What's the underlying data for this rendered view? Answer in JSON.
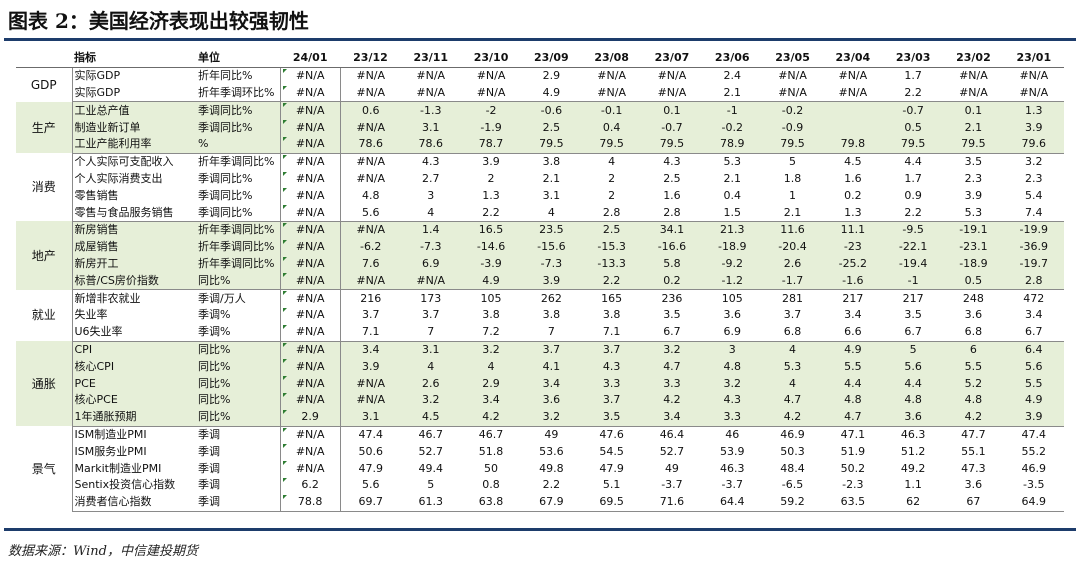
{
  "title": "图表 2：美国经济表现出较强韧性",
  "source": "数据来源：Wind，中信建投期货",
  "table": {
    "headers": [
      "指标",
      "单位",
      "24/01",
      "23/12",
      "23/11",
      "23/10",
      "23/09",
      "23/08",
      "23/07",
      "23/06",
      "23/05",
      "23/04",
      "23/03",
      "23/02",
      "23/01"
    ],
    "groups": [
      {
        "category": "GDP",
        "rows": [
          {
            "name": "实际GDP",
            "unit": "折年同比%",
            "values": [
              "#N/A",
              "#N/A",
              "#N/A",
              "#N/A",
              "2.9",
              "#N/A",
              "#N/A",
              "2.4",
              "#N/A",
              "#N/A",
              "1.7",
              "#N/A",
              "#N/A"
            ]
          },
          {
            "name": "实际GDP",
            "unit": "折年季调环比%",
            "values": [
              "#N/A",
              "#N/A",
              "#N/A",
              "#N/A",
              "4.9",
              "#N/A",
              "#N/A",
              "2.1",
              "#N/A",
              "#N/A",
              "2.2",
              "#N/A",
              "#N/A"
            ]
          }
        ]
      },
      {
        "category": "生产",
        "rows": [
          {
            "name": "工业总产值",
            "unit": "季调同比%",
            "values": [
              "#N/A",
              "0.6",
              "-1.3",
              "-2",
              "-0.6",
              "-0.1",
              "0.1",
              "-1",
              "-0.2",
              "",
              "-0.7",
              "0.1",
              "1.3"
            ]
          },
          {
            "name": "制造业新订单",
            "unit": "季调同比%",
            "values": [
              "#N/A",
              "#N/A",
              "3.1",
              "-1.9",
              "2.5",
              "0.4",
              "-0.7",
              "-0.2",
              "-0.9",
              "",
              "0.5",
              "2.1",
              "3.9"
            ]
          },
          {
            "name": "工业产能利用率",
            "unit": "%",
            "values": [
              "#N/A",
              "78.6",
              "78.6",
              "78.7",
              "79.5",
              "79.5",
              "79.5",
              "78.9",
              "79.5",
              "79.8",
              "79.5",
              "79.5",
              "79.6"
            ]
          }
        ]
      },
      {
        "category": "消费",
        "rows": [
          {
            "name": "个人实际可支配收入",
            "unit": "折年季调同比%",
            "values": [
              "#N/A",
              "#N/A",
              "4.3",
              "3.9",
              "3.8",
              "4",
              "4.3",
              "5.3",
              "5",
              "4.5",
              "4.4",
              "3.5",
              "3.2"
            ]
          },
          {
            "name": "个人实际消费支出",
            "unit": "季调同比%",
            "values": [
              "#N/A",
              "#N/A",
              "2.7",
              "2",
              "2.1",
              "2",
              "2.5",
              "2.1",
              "1.8",
              "1.6",
              "1.7",
              "2.3",
              "2.3"
            ]
          },
          {
            "name": "零售销售",
            "unit": "季调同比%",
            "values": [
              "#N/A",
              "4.8",
              "3",
              "1.3",
              "3.1",
              "2",
              "1.6",
              "0.4",
              "1",
              "0.2",
              "0.9",
              "3.9",
              "5.4"
            ]
          },
          {
            "name": "零售与食品服务销售",
            "unit": "季调同比%",
            "values": [
              "#N/A",
              "5.6",
              "4",
              "2.2",
              "4",
              "2.8",
              "2.8",
              "1.5",
              "2.1",
              "1.3",
              "2.2",
              "5.3",
              "7.4"
            ]
          }
        ]
      },
      {
        "category": "地产",
        "rows": [
          {
            "name": "新房销售",
            "unit": "折年季调同比%",
            "values": [
              "#N/A",
              "#N/A",
              "1.4",
              "16.5",
              "23.5",
              "2.5",
              "34.1",
              "21.3",
              "11.6",
              "11.1",
              "-9.5",
              "-19.1",
              "-19.9"
            ]
          },
          {
            "name": "成屋销售",
            "unit": "折年季调同比%",
            "values": [
              "#N/A",
              "-6.2",
              "-7.3",
              "-14.6",
              "-15.6",
              "-15.3",
              "-16.6",
              "-18.9",
              "-20.4",
              "-23",
              "-22.1",
              "-23.1",
              "-36.9"
            ]
          },
          {
            "name": "新房开工",
            "unit": "折年季调同比%",
            "values": [
              "#N/A",
              "7.6",
              "6.9",
              "-3.9",
              "-7.3",
              "-13.3",
              "5.8",
              "-9.2",
              "2.6",
              "-25.2",
              "-19.4",
              "-18.9",
              "-19.7"
            ]
          },
          {
            "name": "标普/CS房价指数",
            "unit": "同比%",
            "values": [
              "#N/A",
              "#N/A",
              "#N/A",
              "4.9",
              "3.9",
              "2.2",
              "0.2",
              "-1.2",
              "-1.7",
              "-1.6",
              "-1",
              "0.5",
              "2.8"
            ]
          }
        ]
      },
      {
        "category": "就业",
        "rows": [
          {
            "name": "新增非农就业",
            "unit": "季调/万人",
            "values": [
              "#N/A",
              "216",
              "173",
              "105",
              "262",
              "165",
              "236",
              "105",
              "281",
              "217",
              "217",
              "248",
              "472"
            ]
          },
          {
            "name": "失业率",
            "unit": "季调%",
            "values": [
              "#N/A",
              "3.7",
              "3.7",
              "3.8",
              "3.8",
              "3.8",
              "3.5",
              "3.6",
              "3.7",
              "3.4",
              "3.5",
              "3.6",
              "3.4"
            ]
          },
          {
            "name": "U6失业率",
            "unit": "季调%",
            "values": [
              "#N/A",
              "7.1",
              "7",
              "7.2",
              "7",
              "7.1",
              "6.7",
              "6.9",
              "6.8",
              "6.6",
              "6.7",
              "6.8",
              "6.7"
            ]
          }
        ]
      },
      {
        "category": "通胀",
        "rows": [
          {
            "name": "CPI",
            "unit": "同比%",
            "values": [
              "#N/A",
              "3.4",
              "3.1",
              "3.2",
              "3.7",
              "3.7",
              "3.2",
              "3",
              "4",
              "4.9",
              "5",
              "6",
              "6.4"
            ]
          },
          {
            "name": "核心CPI",
            "unit": "同比%",
            "values": [
              "#N/A",
              "3.9",
              "4",
              "4",
              "4.1",
              "4.3",
              "4.7",
              "4.8",
              "5.3",
              "5.5",
              "5.6",
              "5.5",
              "5.6"
            ]
          },
          {
            "name": "PCE",
            "unit": "同比%",
            "values": [
              "#N/A",
              "#N/A",
              "2.6",
              "2.9",
              "3.4",
              "3.3",
              "3.3",
              "3.2",
              "4",
              "4.4",
              "4.4",
              "5.2",
              "5.5"
            ]
          },
          {
            "name": "核心PCE",
            "unit": "同比%",
            "values": [
              "#N/A",
              "#N/A",
              "3.2",
              "3.4",
              "3.6",
              "3.7",
              "4.2",
              "4.3",
              "4.7",
              "4.8",
              "4.8",
              "4.8",
              "4.9"
            ]
          },
          {
            "name": "1年通胀预期",
            "unit": "同比%",
            "values": [
              "2.9",
              "3.1",
              "4.5",
              "4.2",
              "3.2",
              "3.5",
              "3.4",
              "3.3",
              "4.2",
              "4.7",
              "3.6",
              "4.2",
              "3.9"
            ]
          }
        ]
      },
      {
        "category": "景气",
        "rows": [
          {
            "name": "ISM制造业PMI",
            "unit": "季调",
            "values": [
              "#N/A",
              "47.4",
              "46.7",
              "46.7",
              "49",
              "47.6",
              "46.4",
              "46",
              "46.9",
              "47.1",
              "46.3",
              "47.7",
              "47.4"
            ]
          },
          {
            "name": "ISM服务业PMI",
            "unit": "季调",
            "values": [
              "#N/A",
              "50.6",
              "52.7",
              "51.8",
              "53.6",
              "54.5",
              "52.7",
              "53.9",
              "50.3",
              "51.9",
              "51.2",
              "55.1",
              "55.2"
            ]
          },
          {
            "name": "Markit制造业PMI",
            "unit": "季调",
            "values": [
              "#N/A",
              "47.9",
              "49.4",
              "50",
              "49.8",
              "47.9",
              "49",
              "46.3",
              "48.4",
              "50.2",
              "49.2",
              "47.3",
              "46.9"
            ]
          },
          {
            "name": "Sentix投资信心指数",
            "unit": "季调",
            "values": [
              "6.2",
              "5.6",
              "5",
              "0.8",
              "2.2",
              "5.1",
              "-3.7",
              "-3.7",
              "-6.5",
              "-2.3",
              "1.1",
              "3.6",
              "-3.5"
            ]
          },
          {
            "name": "消费者信心指数",
            "unit": "季调",
            "values": [
              "78.8",
              "69.7",
              "61.3",
              "63.8",
              "67.9",
              "69.5",
              "71.6",
              "64.4",
              "59.2",
              "63.5",
              "62",
              "67",
              "64.9"
            ]
          }
        ]
      }
    ]
  },
  "colors": {
    "header_rule": "#1d3c6b",
    "green_band": "#e6efd8",
    "flag": "#2e7d32"
  }
}
